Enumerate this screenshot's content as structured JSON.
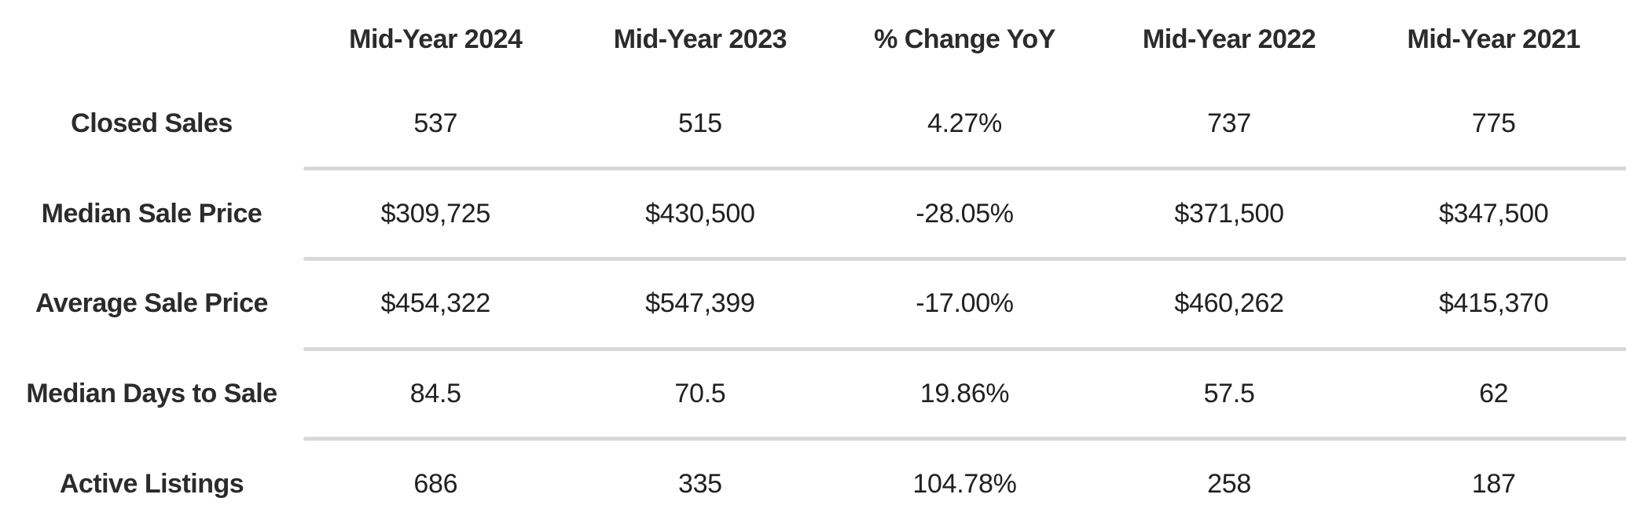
{
  "table": {
    "columns": [
      "Mid-Year 2024",
      "Mid-Year 2023",
      "% Change YoY",
      "Mid-Year 2022",
      "Mid-Year 2021"
    ],
    "rows": [
      {
        "label": "Closed Sales",
        "values": [
          "537",
          "515",
          "4.27%",
          "737",
          "775"
        ]
      },
      {
        "label": "Median Sale Price",
        "values": [
          "$309,725",
          "$430,500",
          "-28.05%",
          "$371,500",
          "$347,500"
        ]
      },
      {
        "label": "Average Sale Price",
        "values": [
          "$454,322",
          "$547,399",
          "-17.00%",
          "$460,262",
          "$415,370"
        ]
      },
      {
        "label": "Median Days to Sale",
        "values": [
          "84.5",
          "70.5",
          "19.86%",
          "57.5",
          "62"
        ]
      },
      {
        "label": "Active Listings",
        "values": [
          "686",
          "335",
          "104.78%",
          "258",
          "187"
        ]
      }
    ]
  },
  "colors": {
    "background": "#ffffff",
    "text": "#212121",
    "heading_text": "#2b2b2b",
    "divider": "#d8d8d8"
  },
  "chart_data": {
    "type": "table",
    "columns": [
      "",
      "Mid-Year 2024",
      "Mid-Year 2023",
      "% Change YoY",
      "Mid-Year 2022",
      "Mid-Year 2021"
    ],
    "rows": [
      [
        "Closed Sales",
        "537",
        "515",
        "4.27%",
        "737",
        "775"
      ],
      [
        "Median Sale Price",
        "$309,725",
        "$430,500",
        "-28.05%",
        "$371,500",
        "$347,500"
      ],
      [
        "Average Sale Price",
        "$454,322",
        "$547,399",
        "-17.00%",
        "$460,262",
        "$415,370"
      ],
      [
        "Median Days to Sale",
        "84.5",
        "70.5",
        "19.86%",
        "57.5",
        "62"
      ],
      [
        "Active Listings",
        "686",
        "335",
        "104.78%",
        "258",
        "187"
      ]
    ],
    "title": "",
    "layout_hints": {
      "label_column_align": "center",
      "value_align": "center",
      "dividers_between_rows": true,
      "header_bold": true
    }
  }
}
